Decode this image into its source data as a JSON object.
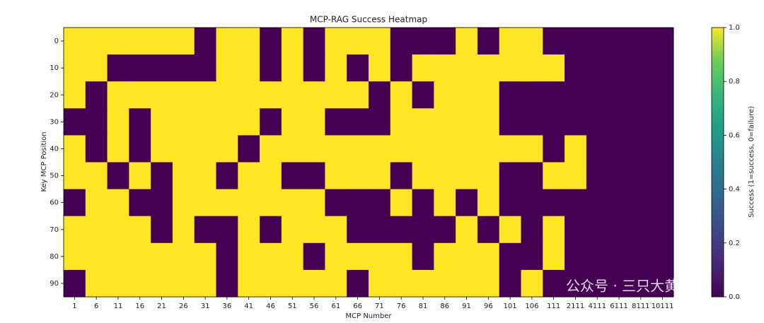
{
  "chart_data": {
    "type": "heatmap",
    "title": "MCP-RAG Success Heatmap",
    "x_label": "MCP Number",
    "y_label": "Key MCP Position",
    "categories": [
      "1",
      "6",
      "11",
      "16",
      "21",
      "26",
      "31",
      "36",
      "41",
      "46",
      "51",
      "56",
      "61",
      "66",
      "71",
      "76",
      "81",
      "86",
      "91",
      "96",
      "101",
      "106",
      "111",
      "2111",
      "4111",
      "6111",
      "8111",
      "10111"
    ],
    "y_categories": [
      0,
      10,
      20,
      30,
      40,
      50,
      60,
      70,
      80,
      90
    ],
    "values": [
      [
        1,
        1,
        1,
        1,
        1,
        1,
        0,
        1,
        1,
        0,
        1,
        0,
        1,
        1,
        1,
        0,
        0,
        0,
        1,
        0,
        1,
        1,
        0,
        0,
        0,
        0,
        0,
        0
      ],
      [
        1,
        1,
        0,
        0,
        0,
        0,
        0,
        1,
        1,
        0,
        1,
        0,
        1,
        0,
        1,
        0,
        1,
        1,
        1,
        1,
        1,
        1,
        1,
        0,
        0,
        0,
        0,
        0
      ],
      [
        1,
        0,
        1,
        1,
        1,
        1,
        1,
        1,
        1,
        1,
        1,
        1,
        1,
        1,
        0,
        1,
        0,
        1,
        1,
        1,
        0,
        0,
        0,
        0,
        0,
        0,
        0,
        0
      ],
      [
        0,
        0,
        1,
        0,
        1,
        1,
        1,
        1,
        1,
        0,
        1,
        1,
        0,
        0,
        0,
        1,
        1,
        1,
        1,
        1,
        0,
        0,
        0,
        0,
        0,
        0,
        0,
        0
      ],
      [
        1,
        0,
        1,
        0,
        1,
        1,
        1,
        1,
        0,
        1,
        1,
        1,
        1,
        1,
        1,
        1,
        1,
        1,
        1,
        1,
        1,
        1,
        0,
        1,
        0,
        0,
        0,
        0
      ],
      [
        1,
        1,
        0,
        1,
        0,
        1,
        1,
        0,
        1,
        1,
        0,
        0,
        1,
        1,
        1,
        0,
        1,
        1,
        1,
        1,
        0,
        0,
        1,
        1,
        0,
        0,
        0,
        0
      ],
      [
        0,
        1,
        1,
        0,
        0,
        1,
        1,
        1,
        1,
        1,
        1,
        1,
        0,
        0,
        0,
        1,
        0,
        1,
        0,
        1,
        0,
        0,
        0,
        0,
        0,
        0,
        0,
        0
      ],
      [
        1,
        1,
        1,
        1,
        0,
        1,
        0,
        0,
        1,
        0,
        1,
        1,
        1,
        0,
        0,
        0,
        0,
        0,
        1,
        0,
        1,
        0,
        1,
        0,
        0,
        0,
        0,
        0
      ],
      [
        1,
        1,
        1,
        1,
        1,
        1,
        1,
        0,
        1,
        1,
        1,
        0,
        1,
        1,
        1,
        1,
        0,
        1,
        1,
        1,
        0,
        0,
        1,
        0,
        0,
        0,
        0,
        0
      ],
      [
        0,
        1,
        1,
        1,
        1,
        1,
        1,
        0,
        1,
        1,
        1,
        1,
        1,
        0,
        1,
        1,
        1,
        1,
        1,
        1,
        0,
        1,
        0,
        0,
        0,
        0,
        0,
        0
      ]
    ],
    "cmap": "viridis",
    "clim": [
      0,
      1
    ],
    "colorbar_label": "Success (1=success, 0=failure)",
    "colorbar_ticks": [
      {
        "value": 0,
        "label": "0.0"
      },
      {
        "value": 0.2,
        "label": "0.2"
      },
      {
        "value": 0.4,
        "label": "0.4"
      },
      {
        "value": 0.6,
        "label": "0.6"
      },
      {
        "value": 0.8,
        "label": "0.8"
      },
      {
        "value": 1,
        "label": "1.0"
      }
    ],
    "watermark": "公众号 · 三只大黄"
  }
}
